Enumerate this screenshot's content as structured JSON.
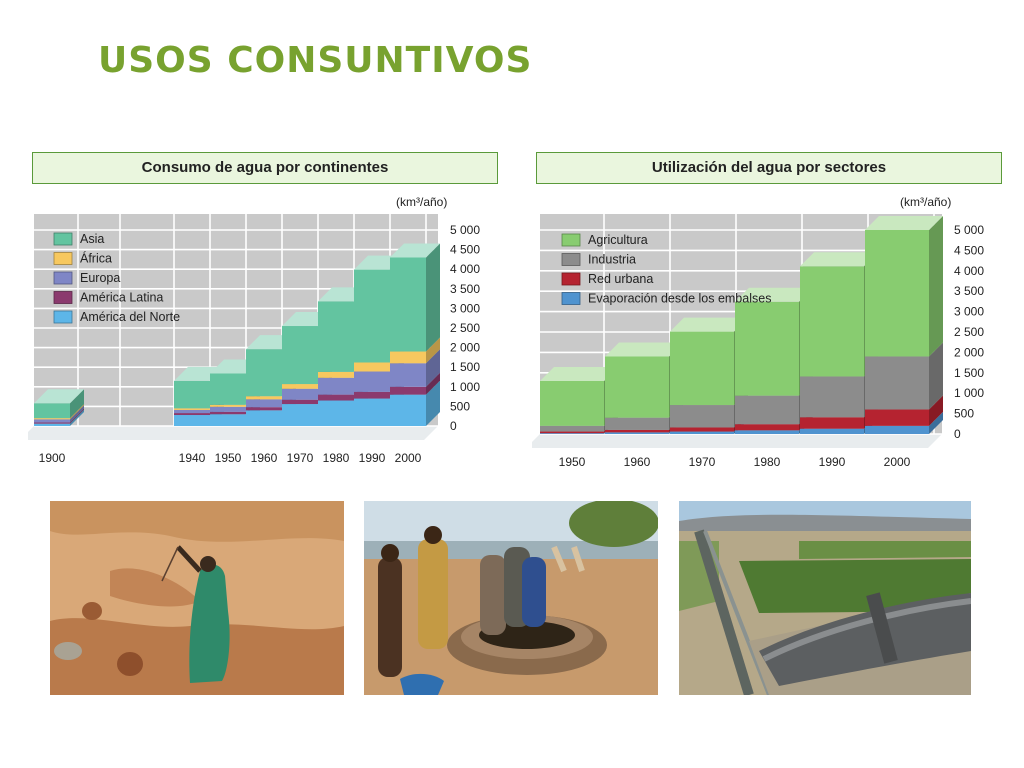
{
  "title": "USOS CONSUNTIVOS",
  "chart_data": [
    {
      "type": "bar",
      "stacked": true,
      "title": "Consumo de agua por continentes",
      "unit": "(km³/año)",
      "categories": [
        "1900",
        "1940",
        "1950",
        "1960",
        "1970",
        "1980",
        "1990",
        "2000"
      ],
      "yticks": [
        "5 000",
        "4 500",
        "4 000",
        "3 500",
        "3 000",
        "2 500",
        "2 000",
        "1 500",
        "1 000",
        "500",
        "0"
      ],
      "ylim": [
        0,
        5000
      ],
      "grid": true,
      "legend_position": "top-left",
      "series": [
        {
          "name": "América del Norte",
          "color": "#5db6e8",
          "values": [
            60,
            280,
            300,
            400,
            560,
            650,
            700,
            800
          ]
        },
        {
          "name": "América Latina",
          "color": "#8b3a6e",
          "values": [
            30,
            50,
            60,
            80,
            110,
            150,
            170,
            200
          ]
        },
        {
          "name": "Europa",
          "color": "#7f86c6",
          "values": [
            80,
            80,
            130,
            200,
            280,
            430,
            520,
            600
          ]
        },
        {
          "name": "África",
          "color": "#f7c85f",
          "values": [
            30,
            40,
            50,
            80,
            120,
            150,
            230,
            300
          ]
        },
        {
          "name": "Asia",
          "color": "#63c4a0",
          "values": [
            380,
            700,
            800,
            1200,
            1480,
            1800,
            2370,
            2400
          ]
        }
      ]
    },
    {
      "type": "bar",
      "stacked": true,
      "title": "Utilización del agua por sectores",
      "unit": "(km³/año)",
      "categories": [
        "1950",
        "1960",
        "1970",
        "1980",
        "1990",
        "2000"
      ],
      "yticks": [
        "5 000",
        "4 500",
        "4 000",
        "3 500",
        "3 000",
        "2 500",
        "2 000",
        "1 500",
        "1 000",
        "500",
        "0"
      ],
      "ylim": [
        0,
        5000
      ],
      "grid": true,
      "legend_position": "top-left",
      "series": [
        {
          "name": "Evaporación desde los embalses",
          "color": "#4f93cf",
          "values": [
            20,
            40,
            60,
            90,
            130,
            200
          ]
        },
        {
          "name": "Red urbana",
          "color": "#b52330",
          "values": [
            40,
            60,
            100,
            150,
            280,
            400
          ]
        },
        {
          "name": "Industria",
          "color": "#8c8c8c",
          "values": [
            140,
            300,
            550,
            700,
            1000,
            1300
          ]
        },
        {
          "name": "Agricultura",
          "color": "#88cc70",
          "values": [
            1100,
            1500,
            1800,
            2300,
            2700,
            3100
          ]
        }
      ]
    }
  ],
  "photos": [
    {
      "name": "photo-woman-well",
      "caption": ""
    },
    {
      "name": "photo-village-well",
      "caption": ""
    },
    {
      "name": "photo-pipeline-irrigation",
      "caption": ""
    }
  ]
}
